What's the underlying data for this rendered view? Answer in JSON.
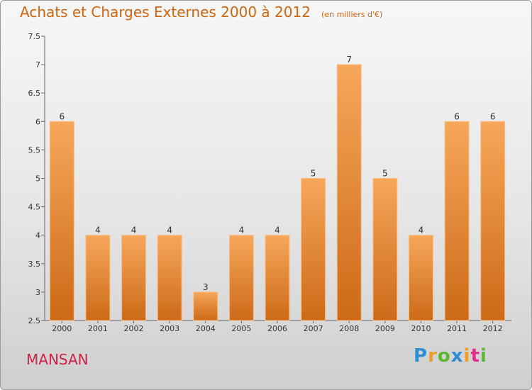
{
  "header": {
    "title": "Achats et Charges Externes 2000 à 2012",
    "unit": "(en milliers d'€)"
  },
  "commune": "MANSAN",
  "logo": {
    "letters": [
      "P",
      "r",
      "o",
      "x",
      "i",
      "t",
      "i"
    ],
    "colors": [
      "#2f8fd6",
      "#f39c1f",
      "#5bb82e",
      "#2f8fd6",
      "#f39c1f",
      "#e0318a",
      "#5bb82e"
    ]
  },
  "colors": {
    "bar_top": "#f7a75a",
    "bar_bottom": "#cc6a18",
    "title": "#d0650f",
    "commune": "#cc2244"
  },
  "chart_data": {
    "type": "bar",
    "title": "Achats et Charges Externes 2000 à 2012",
    "subtitle": "(en milliers d'€)",
    "categories": [
      "2000",
      "2001",
      "2002",
      "2003",
      "2004",
      "2005",
      "2006",
      "2007",
      "2008",
      "2009",
      "2010",
      "2011",
      "2012"
    ],
    "values": [
      6,
      4,
      4,
      4,
      3,
      4,
      4,
      5,
      7,
      5,
      4,
      6,
      6
    ],
    "labels": [
      "6",
      "4",
      "4",
      "4",
      "3",
      "4",
      "4",
      "5",
      "7",
      "5",
      "4",
      "6",
      "6"
    ],
    "yticks": [
      "2.5",
      "3",
      "3.5",
      "4",
      "4.5",
      "5",
      "5.5",
      "6",
      "6.5",
      "7",
      "7.5"
    ],
    "ylim": [
      2.5,
      7.5
    ],
    "grid": false,
    "legend": "none"
  }
}
